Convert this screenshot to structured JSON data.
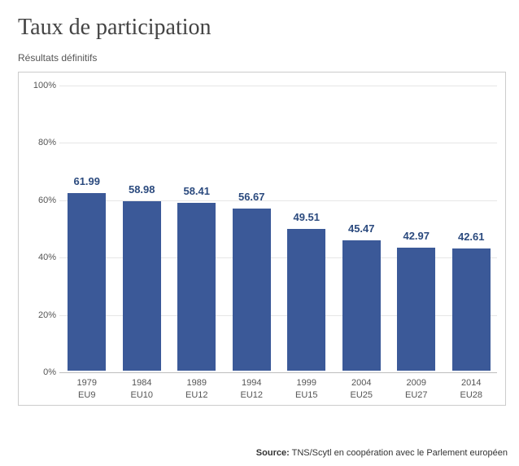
{
  "title": "Taux de participation",
  "subtitle": "Résultats définitifs",
  "chart": {
    "type": "bar",
    "ylim": [
      0,
      100
    ],
    "ytick_step": 20,
    "ytick_suffix": "%",
    "background_color": "#ffffff",
    "border_color": "#cccccc",
    "grid_color": "#e6e6e6",
    "baseline_color": "#bdbdbd",
    "bar_color": "#3b5998",
    "value_label_color": "#2b4a7e",
    "axis_text_color": "#555555",
    "bar_width_ratio": 0.7,
    "categories": [
      {
        "year": "1979",
        "eu": "EU9",
        "value": 61.99
      },
      {
        "year": "1984",
        "eu": "EU10",
        "value": 58.98
      },
      {
        "year": "1989",
        "eu": "EU12",
        "value": 58.41
      },
      {
        "year": "1994",
        "eu": "EU12",
        "value": 56.67
      },
      {
        "year": "1999",
        "eu": "EU15",
        "value": 49.51
      },
      {
        "year": "2004",
        "eu": "EU25",
        "value": 45.47
      },
      {
        "year": "2009",
        "eu": "EU27",
        "value": 42.97
      },
      {
        "year": "2014",
        "eu": "EU28",
        "value": 42.61
      }
    ]
  },
  "source": {
    "label": "Source:",
    "text": "TNS/Scytl en coopération avec le Parlement européen"
  }
}
